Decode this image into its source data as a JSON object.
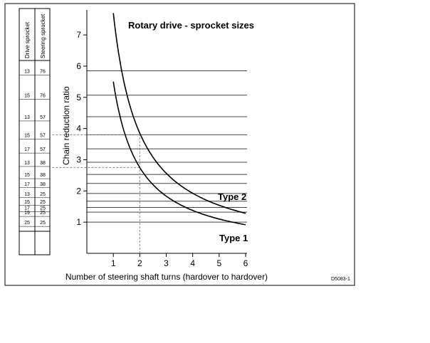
{
  "chart_data": {
    "type": "line",
    "title": "Rotary drive - sprocket sizes",
    "xlabel": "Number of steering shaft turns (hardover to hardover)",
    "ylabel": "Chain reduction ratio",
    "xlim": [
      0,
      6
    ],
    "ylim": [
      0,
      7.8
    ],
    "xticks": [
      1,
      2,
      3,
      4,
      5,
      6
    ],
    "yticks": [
      1,
      2,
      3,
      4,
      5,
      6,
      7
    ],
    "grid": "horizontal lines at each sprocket-combination ratio",
    "series": [
      {
        "name": "Type 1",
        "x": [
          1.0,
          1.5,
          2.0,
          3.0,
          4.0,
          5.0,
          6.0
        ],
        "y": [
          5.5,
          3.67,
          2.75,
          1.83,
          1.38,
          1.1,
          0.92
        ]
      },
      {
        "name": "Type 2",
        "x": [
          1.0,
          1.5,
          2.0,
          3.0,
          4.0,
          5.0,
          6.0
        ],
        "y": [
          7.7,
          5.13,
          3.85,
          2.57,
          1.93,
          1.54,
          1.28
        ]
      }
    ],
    "sprocket_table": {
      "headers": [
        "Drive sprocket",
        "Steering sprocket"
      ],
      "rows": [
        {
          "drive": "13",
          "steering": "76",
          "ratio": 5.85
        },
        {
          "drive": "15",
          "steering": "76",
          "ratio": 5.07
        },
        {
          "drive": "13",
          "steering": "57",
          "ratio": 4.38
        },
        {
          "drive": "15",
          "steering": "57",
          "ratio": 3.8
        },
        {
          "drive": "17",
          "steering": "57",
          "ratio": 3.35
        },
        {
          "drive": "13",
          "steering": "38",
          "ratio": 2.92
        },
        {
          "drive": "15",
          "steering": "38",
          "ratio": 2.53
        },
        {
          "drive": "17",
          "steering": "38",
          "ratio": 2.24
        },
        {
          "drive": "13",
          "steering": "25",
          "ratio": 1.92
        },
        {
          "drive": "15",
          "steering": "25",
          "ratio": 1.67
        },
        {
          "drive": "17",
          "steering": "25",
          "ratio": 1.47
        },
        {
          "drive": "19",
          "steering": "25",
          "ratio": 1.32
        },
        {
          "drive": "25",
          "steering": "25",
          "ratio": 1.0
        }
      ]
    },
    "example_lookup": {
      "x": 2,
      "type2_ratio": 3.8,
      "type1_ratio": 2.75
    }
  },
  "reference_code": "D5083-1"
}
